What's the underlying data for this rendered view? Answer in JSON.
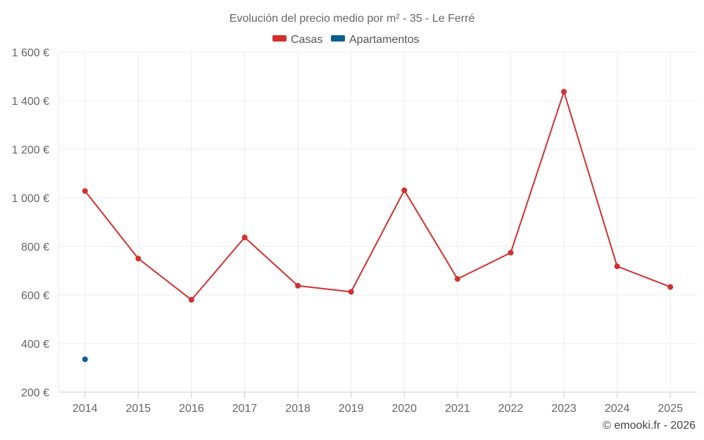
{
  "chart_data": {
    "type": "line",
    "title": "Evolución del precio medio por m² - 35 - Le Ferré",
    "categories": [
      "2014",
      "2015",
      "2016",
      "2017",
      "2018",
      "2019",
      "2020",
      "2021",
      "2022",
      "2023",
      "2024",
      "2025"
    ],
    "series": [
      {
        "name": "Casas",
        "color": "#d32f2f",
        "values": [
          1028,
          750,
          580,
          837,
          638,
          613,
          1031,
          666,
          774,
          1437,
          718,
          633
        ]
      },
      {
        "name": "Apartamentos",
        "color": "#0b5f8f",
        "values": [
          335,
          null,
          null,
          null,
          null,
          null,
          null,
          null,
          null,
          null,
          null,
          null
        ]
      }
    ],
    "ylim": [
      200,
      1600
    ],
    "yticks": [
      200,
      400,
      600,
      800,
      1000,
      1200,
      1400,
      1600
    ],
    "ytick_labels": [
      "200 €",
      "400 €",
      "600 €",
      "800 €",
      "1 000 €",
      "1 200 €",
      "1 400 €",
      "1 600 €"
    ],
    "grid": true,
    "legend_position": "top-center",
    "credit": "© emooki.fr - 2026"
  }
}
